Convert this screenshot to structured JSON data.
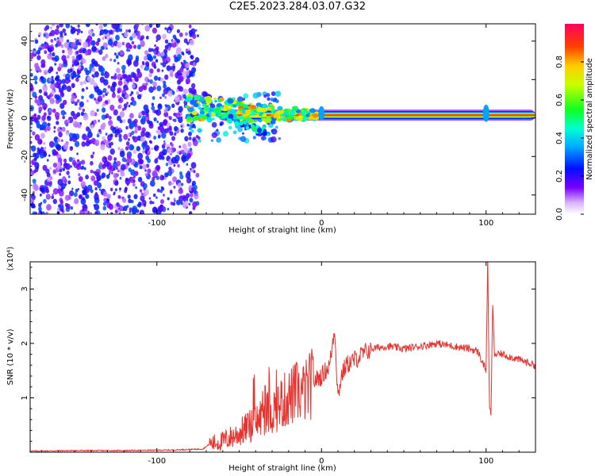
{
  "title": "C2E5.2023.284.03.07.G32",
  "colors": {
    "snr_line": "#e8322e",
    "axis": "#000000"
  },
  "chart_data": [
    {
      "id": "spectrogram",
      "type": "heatmap",
      "xlabel": "Height of straight line (km)",
      "ylabel": "Frequency (Hz)",
      "xlim": [
        -177,
        130
      ],
      "ylim": [
        -50,
        49
      ],
      "xticks": [
        -100,
        0,
        100
      ],
      "yticks": [
        -40,
        -20,
        0,
        20,
        40
      ],
      "colorbar": {
        "label": "Normalized spectral amplitude",
        "range": [
          0,
          1
        ],
        "ticks": [
          "0.0",
          "0.2",
          "0.4",
          "0.6",
          "0.8"
        ]
      },
      "features": [
        {
          "description": "noise",
          "x_range": [
            -177,
            -75
          ],
          "freq_range": [
            -50,
            49
          ],
          "amplitude": 0.15
        },
        {
          "description": "signal ridge",
          "x_range": [
            -82,
            130
          ],
          "center_freq_hz": 1.5,
          "amplitude": 0.85
        }
      ]
    },
    {
      "id": "snr",
      "type": "line",
      "xlabel": "Height of straight line (km)",
      "ylabel": "SNR (10 * v/v)",
      "scale_label": "(x10⁴)",
      "xlim": [
        -177,
        130
      ],
      "ylim": [
        0,
        3.5
      ],
      "xticks": [
        -100,
        0,
        100
      ],
      "yticks": [
        1,
        2,
        3
      ],
      "series": [
        {
          "name": "SNR",
          "x": [
            -177,
            -150,
            -120,
            -90,
            -72,
            -68,
            -60,
            -50,
            -45,
            -40,
            -35,
            -30,
            -25,
            -20,
            -15,
            -10,
            -5,
            0,
            5,
            8,
            10,
            12,
            15,
            20,
            30,
            40,
            50,
            60,
            70,
            80,
            90,
            95,
            100,
            101,
            102,
            103,
            104,
            105,
            110,
            120,
            130
          ],
          "y": [
            0.02,
            0.03,
            0.03,
            0.04,
            0.06,
            0.15,
            0.2,
            0.35,
            0.45,
            0.55,
            0.7,
            0.75,
            0.9,
            1.0,
            1.1,
            1.1,
            1.3,
            1.4,
            1.6,
            2.3,
            1.0,
            1.4,
            1.6,
            1.7,
            1.9,
            1.95,
            1.9,
            1.95,
            2.0,
            1.95,
            1.9,
            1.85,
            1.5,
            3.6,
            0.8,
            0.7,
            2.8,
            1.8,
            1.8,
            1.7,
            1.6
          ]
        }
      ]
    }
  ]
}
